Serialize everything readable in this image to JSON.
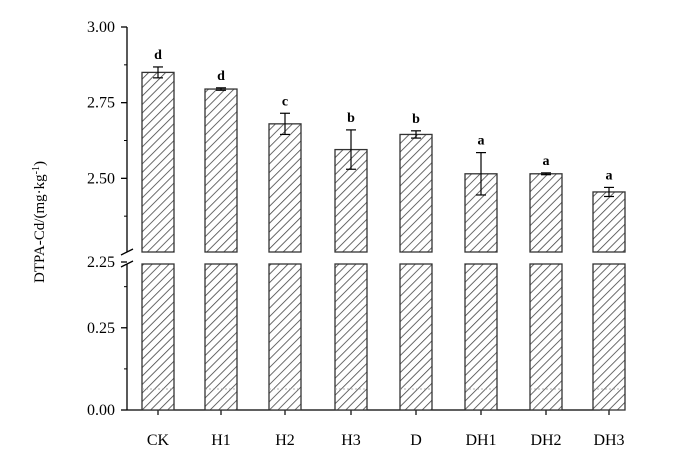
{
  "chart_data": {
    "type": "bar",
    "ylabel_main": "DTPA-Cd/(mg·kg",
    "ylabel_exp": "-1",
    "ylabel_end": ")",
    "categories": [
      "CK",
      "H1",
      "H2",
      "H3",
      "D",
      "DH1",
      "DH2",
      "DH3"
    ],
    "values": [
      2.85,
      2.795,
      2.68,
      2.595,
      2.645,
      2.515,
      2.515,
      2.455
    ],
    "errors": [
      0.018,
      0.004,
      0.035,
      0.065,
      0.012,
      0.07,
      0.003,
      0.015
    ],
    "significance": [
      "d",
      "d",
      "c",
      "b",
      "b",
      "a",
      "a",
      "a"
    ],
    "yticks": [
      "3.00",
      "2.75",
      "2.50",
      "2.25",
      "0.25",
      "0.00"
    ],
    "axis_break": {
      "lower_range": [
        0,
        0.45
      ],
      "upper_range": [
        2.2,
        3.0
      ]
    },
    "bar_fill": "diagonal-hatch",
    "bar_color": "#333333"
  }
}
